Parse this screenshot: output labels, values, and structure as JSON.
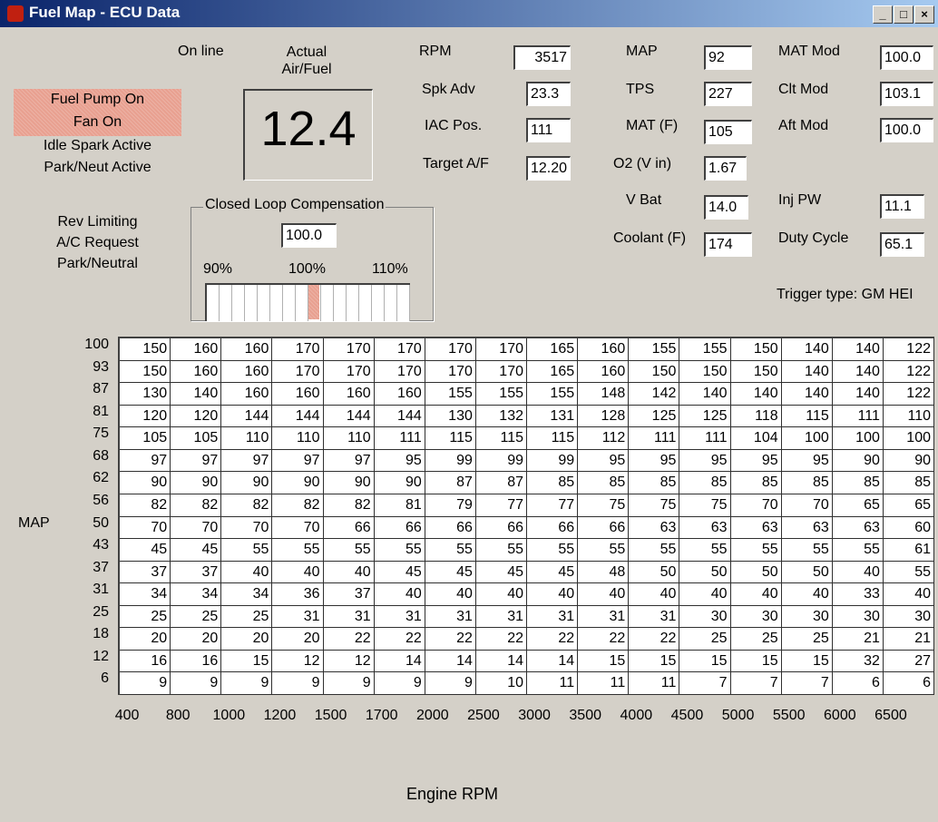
{
  "window": {
    "title": "Fuel Map - ECU Data"
  },
  "status": {
    "highlighted": [
      "Fuel Pump On",
      "Fan On"
    ],
    "indicators": [
      "Idle Spark Active",
      "Park/Neut Active"
    ],
    "inputs": [
      "Rev Limiting",
      "A/C Request",
      "Park/Neutral"
    ]
  },
  "online": "On line",
  "air_fuel": {
    "label": "Actual Air/Fuel",
    "value": "12.4"
  },
  "closed_loop": {
    "title": "Closed Loop Compensation",
    "value": "100.0",
    "scale": [
      "90%",
      "100%",
      "110%"
    ]
  },
  "fields": [
    {
      "label": "RPM",
      "value": "3517"
    },
    {
      "label": "Spk Adv",
      "value": "23.3"
    },
    {
      "label": "IAC Pos.",
      "value": "111"
    },
    {
      "label": "Target A/F",
      "value": "12.20"
    },
    {
      "label": "MAP",
      "value": "92"
    },
    {
      "label": "TPS",
      "value": "227"
    },
    {
      "label": "MAT (F)",
      "value": "105"
    },
    {
      "label": "O2 (V in)",
      "value": "1.67"
    },
    {
      "label": "V Bat",
      "value": "14.0"
    },
    {
      "label": "Coolant (F)",
      "value": "174"
    },
    {
      "label": "MAT Mod",
      "value": "100.0"
    },
    {
      "label": "Clt Mod",
      "value": "103.1"
    },
    {
      "label": "Aft Mod",
      "value": "100.0"
    },
    {
      "label": "Inj PW",
      "value": "11.1"
    },
    {
      "label": "Duty Cycle",
      "value": "65.1"
    }
  ],
  "trigger": "Trigger type: GM HEI",
  "fuel_map": {
    "y_label": "MAP",
    "x_label": "Engine RPM",
    "rows": [
      "100",
      "93",
      "87",
      "81",
      "75",
      "68",
      "62",
      "56",
      "50",
      "43",
      "37",
      "31",
      "25",
      "18",
      "12",
      "6"
    ],
    "columns": [
      "400",
      "800",
      "1000",
      "1200",
      "1500",
      "1700",
      "2000",
      "2500",
      "3000",
      "3500",
      "4000",
      "4500",
      "5000",
      "5500",
      "6000",
      "6500"
    ],
    "highlight": [
      2,
      9
    ],
    "cells": [
      [
        "150",
        "160",
        "160",
        "170",
        "170",
        "170",
        "170",
        "170",
        "165",
        "160",
        "155",
        "155",
        "150",
        "140",
        "140",
        "122"
      ],
      [
        "150",
        "160",
        "160",
        "170",
        "170",
        "170",
        "170",
        "170",
        "165",
        "160",
        "150",
        "150",
        "150",
        "140",
        "140",
        "122"
      ],
      [
        "130",
        "140",
        "160",
        "160",
        "160",
        "160",
        "155",
        "155",
        "155",
        "148",
        "142",
        "140",
        "140",
        "140",
        "140",
        "122"
      ],
      [
        "120",
        "120",
        "144",
        "144",
        "144",
        "144",
        "130",
        "132",
        "131",
        "128",
        "125",
        "125",
        "118",
        "115",
        "111",
        "110"
      ],
      [
        "105",
        "105",
        "110",
        "110",
        "110",
        "111",
        "115",
        "115",
        "115",
        "112",
        "111",
        "111",
        "104",
        "100",
        "100",
        "100"
      ],
      [
        "97",
        "97",
        "97",
        "97",
        "97",
        "95",
        "99",
        "99",
        "99",
        "95",
        "95",
        "95",
        "95",
        "95",
        "90",
        "90"
      ],
      [
        "90",
        "90",
        "90",
        "90",
        "90",
        "90",
        "87",
        "87",
        "85",
        "85",
        "85",
        "85",
        "85",
        "85",
        "85",
        "85"
      ],
      [
        "82",
        "82",
        "82",
        "82",
        "82",
        "81",
        "79",
        "77",
        "77",
        "75",
        "75",
        "75",
        "70",
        "70",
        "65",
        "65"
      ],
      [
        "70",
        "70",
        "70",
        "70",
        "66",
        "66",
        "66",
        "66",
        "66",
        "66",
        "63",
        "63",
        "63",
        "63",
        "63",
        "60"
      ],
      [
        "45",
        "45",
        "55",
        "55",
        "55",
        "55",
        "55",
        "55",
        "55",
        "55",
        "55",
        "55",
        "55",
        "55",
        "55",
        "61"
      ],
      [
        "37",
        "37",
        "40",
        "40",
        "40",
        "45",
        "45",
        "45",
        "45",
        "48",
        "50",
        "50",
        "50",
        "50",
        "40",
        "55"
      ],
      [
        "34",
        "34",
        "34",
        "36",
        "37",
        "40",
        "40",
        "40",
        "40",
        "40",
        "40",
        "40",
        "40",
        "40",
        "33",
        "40"
      ],
      [
        "25",
        "25",
        "25",
        "31",
        "31",
        "31",
        "31",
        "31",
        "31",
        "31",
        "31",
        "30",
        "30",
        "30",
        "30",
        "30"
      ],
      [
        "20",
        "20",
        "20",
        "20",
        "22",
        "22",
        "22",
        "22",
        "22",
        "22",
        "22",
        "25",
        "25",
        "25",
        "21",
        "21"
      ],
      [
        "16",
        "16",
        "15",
        "12",
        "12",
        "14",
        "14",
        "14",
        "14",
        "15",
        "15",
        "15",
        "15",
        "15",
        "32",
        "27"
      ],
      [
        "9",
        "9",
        "9",
        "9",
        "9",
        "9",
        "9",
        "10",
        "11",
        "11",
        "11",
        "7",
        "7",
        "7",
        "6",
        "6"
      ]
    ]
  }
}
